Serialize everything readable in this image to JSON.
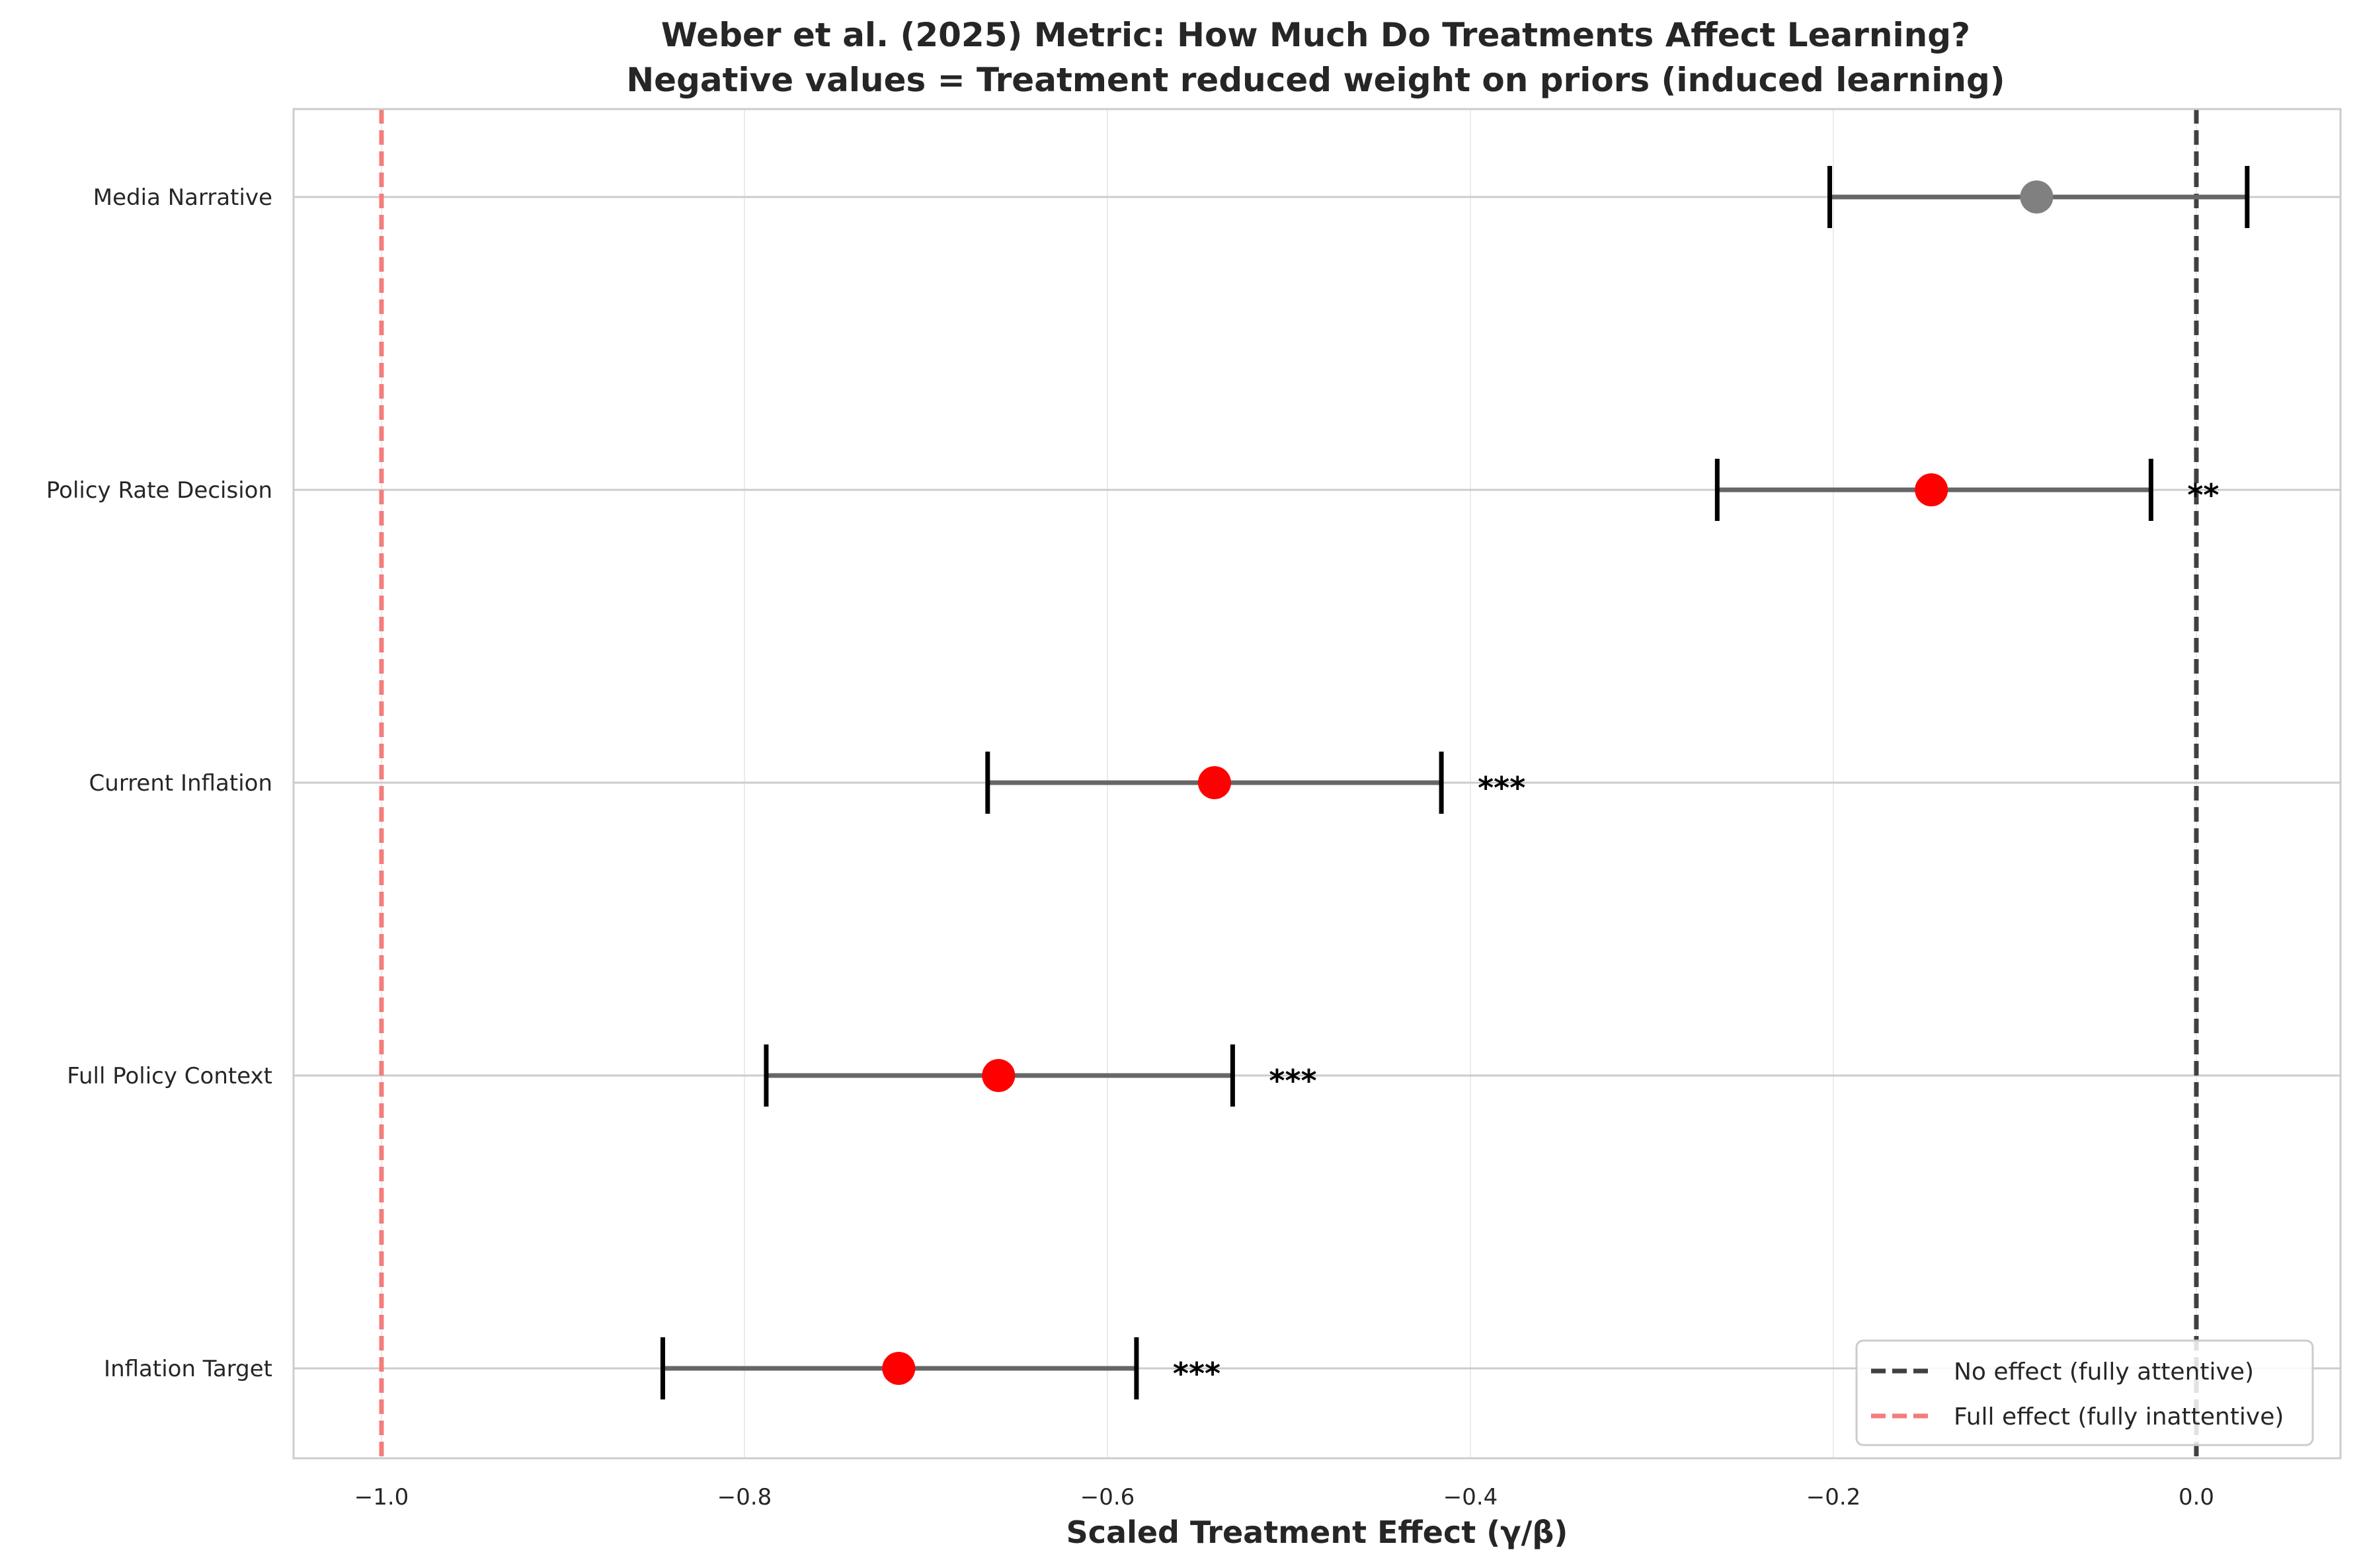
{
  "chart_data": {
    "type": "forest",
    "title": "Weber et al. (2025) Metric: How Much Do Treatments Affect Learning?",
    "subtitle": "Negative values = Treatment reduced weight on priors (induced learning)",
    "xlabel": "Scaled Treatment Effect (γ/β)",
    "ylabel": "",
    "xlim": [
      -1.05,
      0.075
    ],
    "xticks": [
      -1.0,
      -0.8,
      -0.6,
      -0.4,
      -0.2,
      0.0
    ],
    "xtick_labels": [
      "−1.0",
      "−0.8",
      "−0.6",
      "−0.4",
      "−0.2",
      "0.0"
    ],
    "grid": true,
    "categories": [
      "Media Narrative",
      "Policy Rate Decision",
      "Current Inflation",
      "Full Policy Context",
      "Inflation Target"
    ],
    "estimates": [
      -0.088,
      -0.146,
      -0.541,
      -0.66,
      -0.715
    ],
    "ci_low": [
      -0.202,
      -0.264,
      -0.666,
      -0.788,
      -0.845
    ],
    "ci_high": [
      0.028,
      -0.025,
      -0.416,
      -0.531,
      -0.584
    ],
    "significance": [
      "",
      "**",
      "***",
      "***",
      "***"
    ],
    "point_colors": [
      "#808080",
      "#ff0000",
      "#ff0000",
      "#ff0000",
      "#ff0000"
    ],
    "reference_lines": [
      {
        "x": 0.0,
        "label": "No effect (fully attentive)",
        "color": "#404040"
      },
      {
        "x": -1.0,
        "label": "Full effect (fully inattentive)",
        "color": "#f47c7c"
      }
    ],
    "legend_position": "lower-right"
  }
}
